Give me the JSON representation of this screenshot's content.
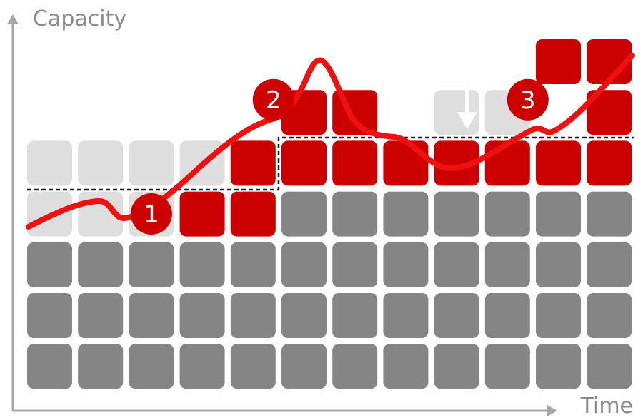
{
  "axes": {
    "y_label": "Capacity",
    "x_label": "Time"
  },
  "grid": {
    "columns": 12,
    "rows": 7,
    "cells": [
      "..........rr",
      ".....rr.eg.r",
      "EEEErrrrrrrr",
      "EEErrDDDDDDD",
      "DDDDDDDDDDDD",
      "DDDDDDDDDDDD",
      "DDDDDDDDDDDD"
    ],
    "legend_codes": {
      "D": "baseline capacity",
      "E": "unused capacity",
      "r": "added capacity",
      "e": "unused capacity",
      "g": "unused capacity"
    }
  },
  "markers": [
    {
      "label": "1",
      "col": 2,
      "row": 3.75
    },
    {
      "label": "2",
      "col": 4.4,
      "row": 1.5
    },
    {
      "label": "3",
      "col": 9.4,
      "row": 1.5
    }
  ],
  "colors": {
    "baseline": "#858585",
    "unused": "#dedede",
    "added": "#cc0000",
    "demand_line": "#ee1111",
    "marker_fill": "#cc0000",
    "axis": "#a6a6a6",
    "threshold": "#1a1a1a",
    "arrow": "#ffffff"
  },
  "icons": {
    "double_arrow": "double-headed-vertical-arrow-icon"
  }
}
